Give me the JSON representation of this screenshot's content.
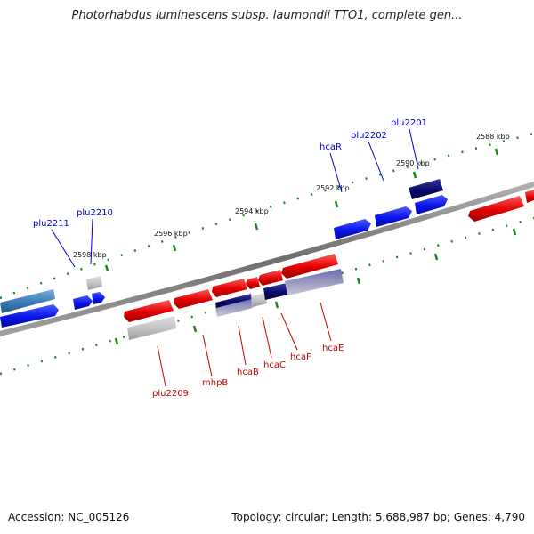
{
  "title": "Photorhabdus luminescens subsp. laumondii TTO1, complete gen...",
  "footer": {
    "accession": "Accession: NC_005126",
    "summary": "Topology: circular; Length: 5,688,987 bp; Genes: 4,790"
  },
  "scale_labels": [
    "2598 kbp",
    "2596 kbp",
    "2594 kbp",
    "2592 kbp",
    "2590 kbp",
    "2588 kbp"
  ],
  "gene_labels_top": [
    "plu2211",
    "plu2210",
    "hcaR",
    "plu2202",
    "plu2201"
  ],
  "gene_labels_bottom": [
    "plu2209",
    "mhpB",
    "hcaB",
    "hcaC",
    "hcaF",
    "hcaE"
  ],
  "colors": {
    "backbone": "#7a7a7a",
    "forward_gene": "#0a14e6",
    "reverse_gene": "#e00000",
    "highlight_gene": "#0a0a6e",
    "steelblue_gene": "#3c7ab4",
    "tick": "#1a8a1a"
  }
}
